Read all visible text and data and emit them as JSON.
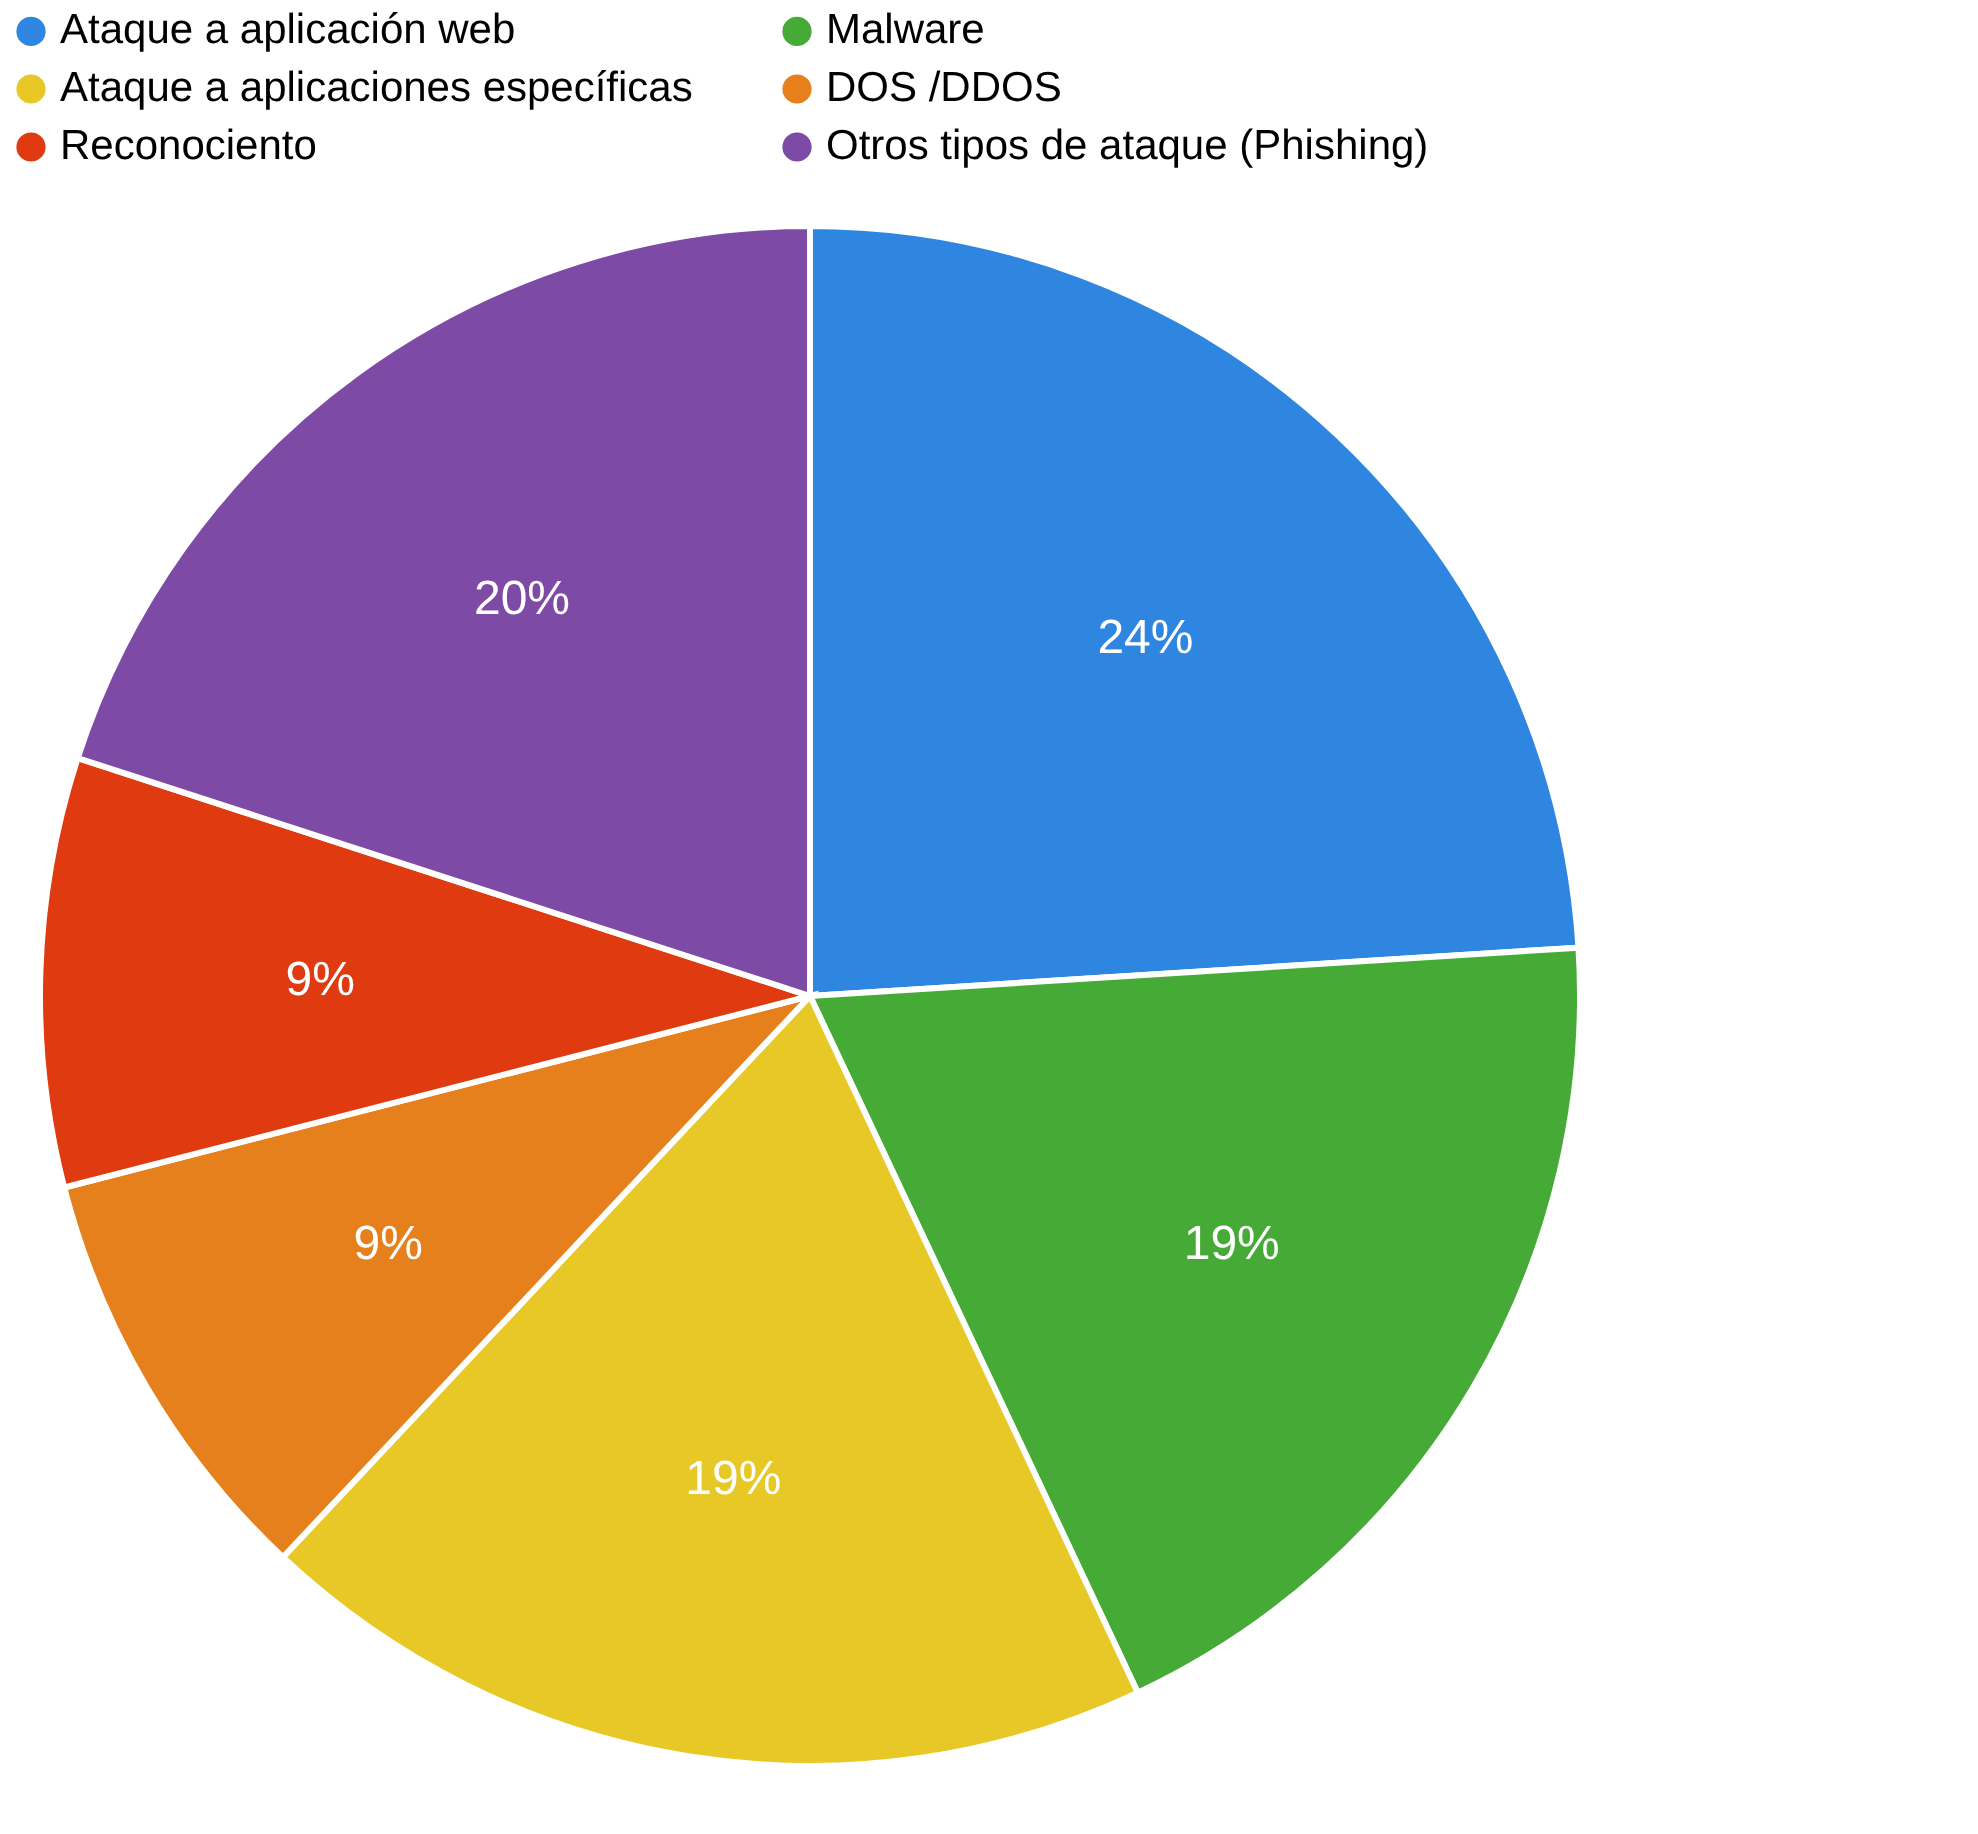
{
  "chart_data": {
    "type": "pie",
    "categories": [
      "Ataque a aplicación web",
      "Malware",
      "Ataque a aplicaciones específicas",
      "DOS /DDOS",
      "Reconociento",
      "Otros tipos de ataque (Phishing)"
    ],
    "values": [
      24,
      19,
      19,
      9,
      9,
      20
    ],
    "value_labels": [
      "24%",
      "19%",
      "19%",
      "9%",
      "9%",
      "20%"
    ],
    "colors": [
      "#2f86e0",
      "#46ab36",
      "#e8c827",
      "#e6801c",
      "#e03a10",
      "#7d4aa6"
    ],
    "legend": "top"
  }
}
